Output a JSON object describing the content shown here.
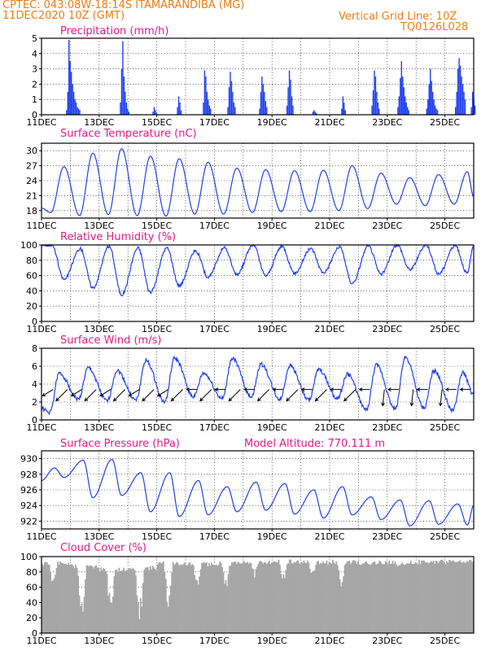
{
  "header": {
    "left_line1": "CPTEC:   043:08W-18:14S   ITAMARANDIBA (MG)",
    "left_line2": "11DEC2020  10Z (GMT)",
    "right_line1": "Vertical Grid Line: 10Z",
    "right_line2": "TQ0126L028"
  },
  "colors": {
    "header": "#f07c16",
    "title": "#e8188a",
    "line": "#2040f0",
    "bar": "#2040f0",
    "cloud": "#a6a6a6",
    "arrow": "#000000"
  },
  "x_ticks": [
    "11DEC",
    "13DEC",
    "15DEC",
    "17DEC",
    "19DEC",
    "21DEC",
    "23DEC",
    "25DEC"
  ],
  "chart_data": [
    {
      "id": "precip",
      "type": "bar",
      "title": "Precipitation (mm/h)",
      "x_days": [
        0,
        15
      ],
      "ylim": [
        0,
        5
      ],
      "yticks": [
        0,
        1,
        2,
        3,
        4,
        5
      ],
      "grid": true,
      "events": [
        {
          "day": 0.85,
          "values": [
            0.3,
            1.5,
            4.9,
            3.5,
            2.8,
            2.0,
            1.5,
            1.0,
            0.8,
            0.5,
            0.4,
            0.3
          ]
        },
        {
          "day": 2.72,
          "values": [
            0.8,
            3.0,
            4.8,
            2.5,
            1.5,
            0.8,
            0.4,
            0.2
          ]
        },
        {
          "day": 3.85,
          "values": [
            0.2,
            0.5,
            0.3,
            0.1
          ]
        },
        {
          "day": 4.7,
          "values": [
            0.5,
            1.2,
            0.8,
            0.3
          ]
        },
        {
          "day": 5.6,
          "values": [
            0.8,
            2.9,
            2.5,
            1.5,
            1.0,
            0.6,
            0.4
          ]
        },
        {
          "day": 6.45,
          "values": [
            0.5,
            1.8,
            2.8,
            2.2,
            1.5,
            0.8,
            0.5
          ]
        },
        {
          "day": 7.55,
          "values": [
            0.4,
            1.5,
            2.5,
            2.0,
            1.5,
            0.9,
            0.5
          ]
        },
        {
          "day": 8.5,
          "values": [
            0.6,
            1.8,
            2.9,
            2.3,
            1.2,
            0.6
          ]
        },
        {
          "day": 9.4,
          "values": [
            0.2,
            0.3,
            0.2,
            0.1
          ]
        },
        {
          "day": 10.4,
          "values": [
            0.4,
            1.2,
            0.8,
            0.3
          ]
        },
        {
          "day": 11.45,
          "values": [
            0.6,
            1.6,
            2.9,
            2.5,
            1.5,
            0.8,
            0.4
          ]
        },
        {
          "day": 12.35,
          "values": [
            0.5,
            1.2,
            2.4,
            3.5,
            2.5,
            1.8,
            1.2,
            0.8,
            0.5,
            0.3
          ]
        },
        {
          "day": 13.35,
          "values": [
            0.4,
            1.0,
            2.0,
            3.0,
            2.2,
            1.5,
            1.0,
            0.6,
            0.4,
            0.3
          ]
        },
        {
          "day": 14.35,
          "values": [
            0.5,
            1.5,
            3.0,
            3.7,
            3.2,
            2.5,
            2.0,
            1.5,
            1.0
          ]
        },
        {
          "day": 14.9,
          "values": [
            0.5,
            1.5,
            1.0,
            0.6
          ]
        }
      ]
    },
    {
      "id": "temp",
      "type": "line",
      "title": "Surface Temperature (nC)",
      "ylim": [
        16.5,
        31.5
      ],
      "yticks": [
        18,
        21,
        24,
        27,
        30
      ],
      "grid": true,
      "daily": [
        {
          "min": 17.6,
          "max": 26.8
        },
        {
          "min": 17.0,
          "max": 29.5
        },
        {
          "min": 17.2,
          "max": 30.4
        },
        {
          "min": 17.0,
          "max": 28.9
        },
        {
          "min": 16.9,
          "max": 28.4
        },
        {
          "min": 17.3,
          "max": 27.7
        },
        {
          "min": 17.3,
          "max": 26.5
        },
        {
          "min": 17.6,
          "max": 26.2
        },
        {
          "min": 17.8,
          "max": 26.0
        },
        {
          "min": 17.8,
          "max": 26.1
        },
        {
          "min": 18.0,
          "max": 27.0
        },
        {
          "min": 18.4,
          "max": 25.5
        },
        {
          "min": 19.3,
          "max": 24.6
        },
        {
          "min": 19.0,
          "max": 25.2
        },
        {
          "min": 19.3,
          "max": 25.8
        }
      ],
      "start": 18.5,
      "end": 20.8
    },
    {
      "id": "rh",
      "type": "line",
      "title": "Relative Humidity (%)",
      "ylim": [
        0,
        100
      ],
      "yticks": [
        0,
        20,
        40,
        60,
        80,
        100
      ],
      "grid": true,
      "daily": [
        {
          "min": 55,
          "max": 100
        },
        {
          "min": 44,
          "max": 95
        },
        {
          "min": 35,
          "max": 98
        },
        {
          "min": 38,
          "max": 96
        },
        {
          "min": 47,
          "max": 96
        },
        {
          "min": 58,
          "max": 92
        },
        {
          "min": 62,
          "max": 96
        },
        {
          "min": 60,
          "max": 100
        },
        {
          "min": 63,
          "max": 98
        },
        {
          "min": 64,
          "max": 95
        },
        {
          "min": 50,
          "max": 97
        },
        {
          "min": 62,
          "max": 98
        },
        {
          "min": 68,
          "max": 100
        },
        {
          "min": 62,
          "max": 100
        },
        {
          "min": 63,
          "max": 99
        }
      ],
      "start": 100,
      "end": 100
    },
    {
      "id": "wind",
      "type": "line",
      "title": "Surface Wind (m/s)",
      "ylim": [
        0,
        8
      ],
      "yticks": [
        0,
        2,
        4,
        6,
        8
      ],
      "grid": true,
      "daily": [
        {
          "min": 0.8,
          "max": 5.2
        },
        {
          "min": 2.3,
          "max": 5.8
        },
        {
          "min": 2.1,
          "max": 5.5
        },
        {
          "min": 2.2,
          "max": 6.6
        },
        {
          "min": 2.0,
          "max": 6.9
        },
        {
          "min": 2.6,
          "max": 5.2
        },
        {
          "min": 2.4,
          "max": 6.9
        },
        {
          "min": 2.6,
          "max": 6.2
        },
        {
          "min": 2.3,
          "max": 6.1
        },
        {
          "min": 2.2,
          "max": 5.6
        },
        {
          "min": 2.4,
          "max": 5.1
        },
        {
          "min": 1.1,
          "max": 6.1
        },
        {
          "min": 1.2,
          "max": 7.0
        },
        {
          "min": 1.3,
          "max": 5.5
        },
        {
          "min": 1.1,
          "max": 5.3
        }
      ],
      "start": 1.3,
      "end": 2.8,
      "arrows": [
        {
          "day": 0.4,
          "dir": "up-left"
        },
        {
          "day": 0.9,
          "dir": "down-left"
        },
        {
          "day": 1.4,
          "dir": "up-left"
        },
        {
          "day": 1.9,
          "dir": "down-left"
        },
        {
          "day": 2.4,
          "dir": "up-left"
        },
        {
          "day": 2.9,
          "dir": "down-left"
        },
        {
          "day": 3.4,
          "dir": "up-left"
        },
        {
          "day": 3.9,
          "dir": "down-left"
        },
        {
          "day": 4.4,
          "dir": "up-left"
        },
        {
          "day": 4.9,
          "dir": "down-left"
        },
        {
          "day": 5.4,
          "dir": "left"
        },
        {
          "day": 5.9,
          "dir": "down-left"
        },
        {
          "day": 6.4,
          "dir": "left"
        },
        {
          "day": 6.9,
          "dir": "down-left"
        },
        {
          "day": 7.4,
          "dir": "left"
        },
        {
          "day": 7.9,
          "dir": "down-left"
        },
        {
          "day": 8.4,
          "dir": "left"
        },
        {
          "day": 8.9,
          "dir": "down-left"
        },
        {
          "day": 9.4,
          "dir": "left"
        },
        {
          "day": 9.9,
          "dir": "down-left"
        },
        {
          "day": 10.4,
          "dir": "left"
        },
        {
          "day": 10.9,
          "dir": "down-left"
        },
        {
          "day": 11.4,
          "dir": "left"
        },
        {
          "day": 11.9,
          "dir": "down"
        },
        {
          "day": 12.4,
          "dir": "left"
        },
        {
          "day": 12.9,
          "dir": "down"
        },
        {
          "day": 13.4,
          "dir": "left"
        },
        {
          "day": 13.9,
          "dir": "down"
        },
        {
          "day": 14.4,
          "dir": "left"
        },
        {
          "day": 14.9,
          "dir": "left"
        }
      ]
    },
    {
      "id": "pressure",
      "type": "line",
      "title": "Surface Pressure (hPa)",
      "subtitle": "Model Altitude: 770.111 m",
      "ylim": [
        921,
        931
      ],
      "yticks": [
        922,
        924,
        926,
        928,
        930
      ],
      "grid": true,
      "daily": [
        {
          "min": 927.6,
          "max": 928.8
        },
        {
          "min": 925.0,
          "max": 929.8
        },
        {
          "min": 925.3,
          "max": 929.9
        },
        {
          "min": 923.2,
          "max": 928.2
        },
        {
          "min": 922.6,
          "max": 928.2
        },
        {
          "min": 922.8,
          "max": 927.2
        },
        {
          "min": 923.2,
          "max": 926.4
        },
        {
          "min": 923.4,
          "max": 927.0
        },
        {
          "min": 922.9,
          "max": 926.8
        },
        {
          "min": 922.4,
          "max": 926.0
        },
        {
          "min": 922.8,
          "max": 926.4
        },
        {
          "min": 922.2,
          "max": 925.1
        },
        {
          "min": 921.4,
          "max": 924.7
        },
        {
          "min": 921.6,
          "max": 924.6
        },
        {
          "min": 921.5,
          "max": 924.2
        }
      ],
      "start": 927.2,
      "end": 924.0
    },
    {
      "id": "cloud",
      "type": "bar",
      "title": "Cloud Cover (%)",
      "ylim": [
        0,
        100
      ],
      "yticks": [
        0,
        20,
        40,
        60,
        80,
        100
      ],
      "grid": true,
      "daily": [
        {
          "base": 94,
          "dip": 62
        },
        {
          "base": 90,
          "dip": 15
        },
        {
          "base": 86,
          "dip": 20
        },
        {
          "base": 88,
          "dip": 8
        },
        {
          "base": 94,
          "dip": 28
        },
        {
          "base": 93,
          "dip": 60
        },
        {
          "base": 94,
          "dip": 58
        },
        {
          "base": 96,
          "dip": 72
        },
        {
          "base": 96,
          "dip": 65
        },
        {
          "base": 95,
          "dip": 70
        },
        {
          "base": 96,
          "dip": 55
        },
        {
          "base": 95,
          "dip": 88
        },
        {
          "base": 95,
          "dip": 86
        },
        {
          "base": 96,
          "dip": 90
        },
        {
          "base": 96,
          "dip": 92
        }
      ]
    }
  ]
}
